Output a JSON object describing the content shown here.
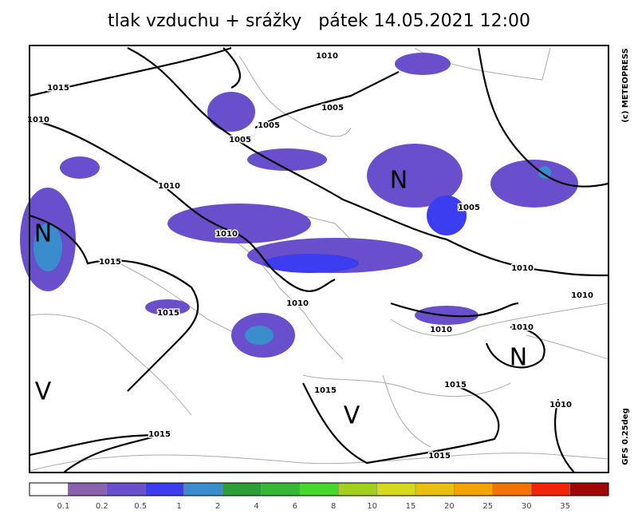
{
  "header": {
    "title": "tlak vzduchu + srážky   pátek 14.05.2021 12:00"
  },
  "side": {
    "copyright": "(c) METEOPRESS",
    "model": "GFS 0.25deg"
  },
  "map": {
    "isobar_labels": [
      "1010",
      "1015",
      "1010",
      "1005",
      "1005",
      "1005",
      "1010",
      "1005",
      "1010",
      "1015",
      "1010",
      "1010",
      "1010",
      "1015",
      "1010",
      "1010",
      "1015",
      "1015",
      "1010",
      "1015",
      "1015"
    ],
    "systems": [
      "N",
      "N",
      "N",
      "V",
      "V"
    ]
  },
  "legend": {
    "colors": [
      "#ffffff",
      "#8a62ae",
      "#6a4fcc",
      "#3c3cf0",
      "#3a8ccc",
      "#2e9e36",
      "#36b836",
      "#46d82c",
      "#a2d01e",
      "#d8d81c",
      "#eac010",
      "#f4a402",
      "#f47202",
      "#f42206",
      "#a00808"
    ],
    "ticks": [
      "0.1",
      "0.2",
      "0.5",
      "1",
      "2",
      "4",
      "6",
      "8",
      "10",
      "15",
      "20",
      "25",
      "30",
      "35"
    ]
  }
}
